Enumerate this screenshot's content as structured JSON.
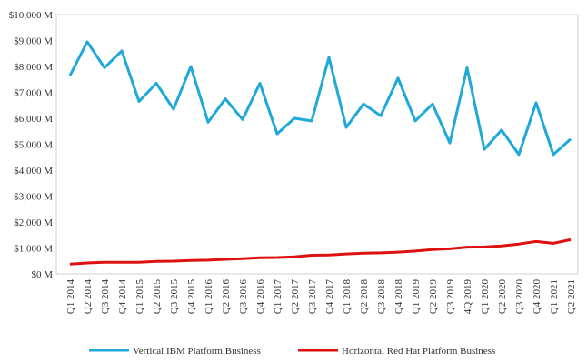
{
  "chart_data": {
    "type": "line",
    "title": "",
    "xlabel": "",
    "ylabel": "",
    "categories": [
      "Q1 2014",
      "Q2 2014",
      "Q3 2014",
      "Q4 2014",
      "Q1 2015",
      "Q2 2015",
      "Q3 2015",
      "Q4 2015",
      "Q1 2016",
      "Q2 2016",
      "Q3 2016",
      "Q4 2016",
      "Q1 2017",
      "Q2 2017",
      "Q3 2017",
      "Q4 2017",
      "Q1 2018",
      "Q2 2018",
      "Q3 2018",
      "Q4 2018",
      "Q1 2019",
      "Q2 2019",
      "Q3 2019",
      "4Q 2019",
      "Q1 2020",
      "Q2 2020",
      "Q3 2020",
      "Q4 2020",
      "Q1 2021",
      "Q2 2021"
    ],
    "ylim": [
      0,
      10000
    ],
    "yticks": [
      0,
      1000,
      2000,
      3000,
      4000,
      5000,
      6000,
      7000,
      8000,
      9000,
      10000
    ],
    "ytick_labels": [
      "$0 M",
      "$1,000 M",
      "$2,000 M",
      "$3,000 M",
      "$4,000 M",
      "$5,000 M",
      "$6,000 M",
      "$7,000 M",
      "$8,000 M",
      "$9,000 M",
      "$10,000 M"
    ],
    "grid": false,
    "legend_position": "bottom",
    "series": [
      {
        "name": "Vertical IBM Platform Business",
        "color": "#1fa8d8",
        "values": [
          7650,
          8950,
          7950,
          8600,
          6650,
          7350,
          6350,
          8000,
          5850,
          6750,
          5950,
          7350,
          5400,
          6000,
          5900,
          8350,
          5650,
          6550,
          6100,
          7550,
          5900,
          6550,
          5050,
          7950,
          4800,
          5550,
          4600,
          6600,
          4600,
          5200
        ]
      },
      {
        "name": "Horizontal Red Hat Platform Business",
        "color": "#dd1111",
        "values": [
          380,
          420,
          450,
          450,
          450,
          480,
          490,
          520,
          530,
          560,
          590,
          620,
          630,
          660,
          720,
          730,
          770,
          800,
          810,
          840,
          880,
          940,
          970,
          1030,
          1040,
          1080,
          1150,
          1250,
          1180,
          1320
        ]
      }
    ]
  }
}
